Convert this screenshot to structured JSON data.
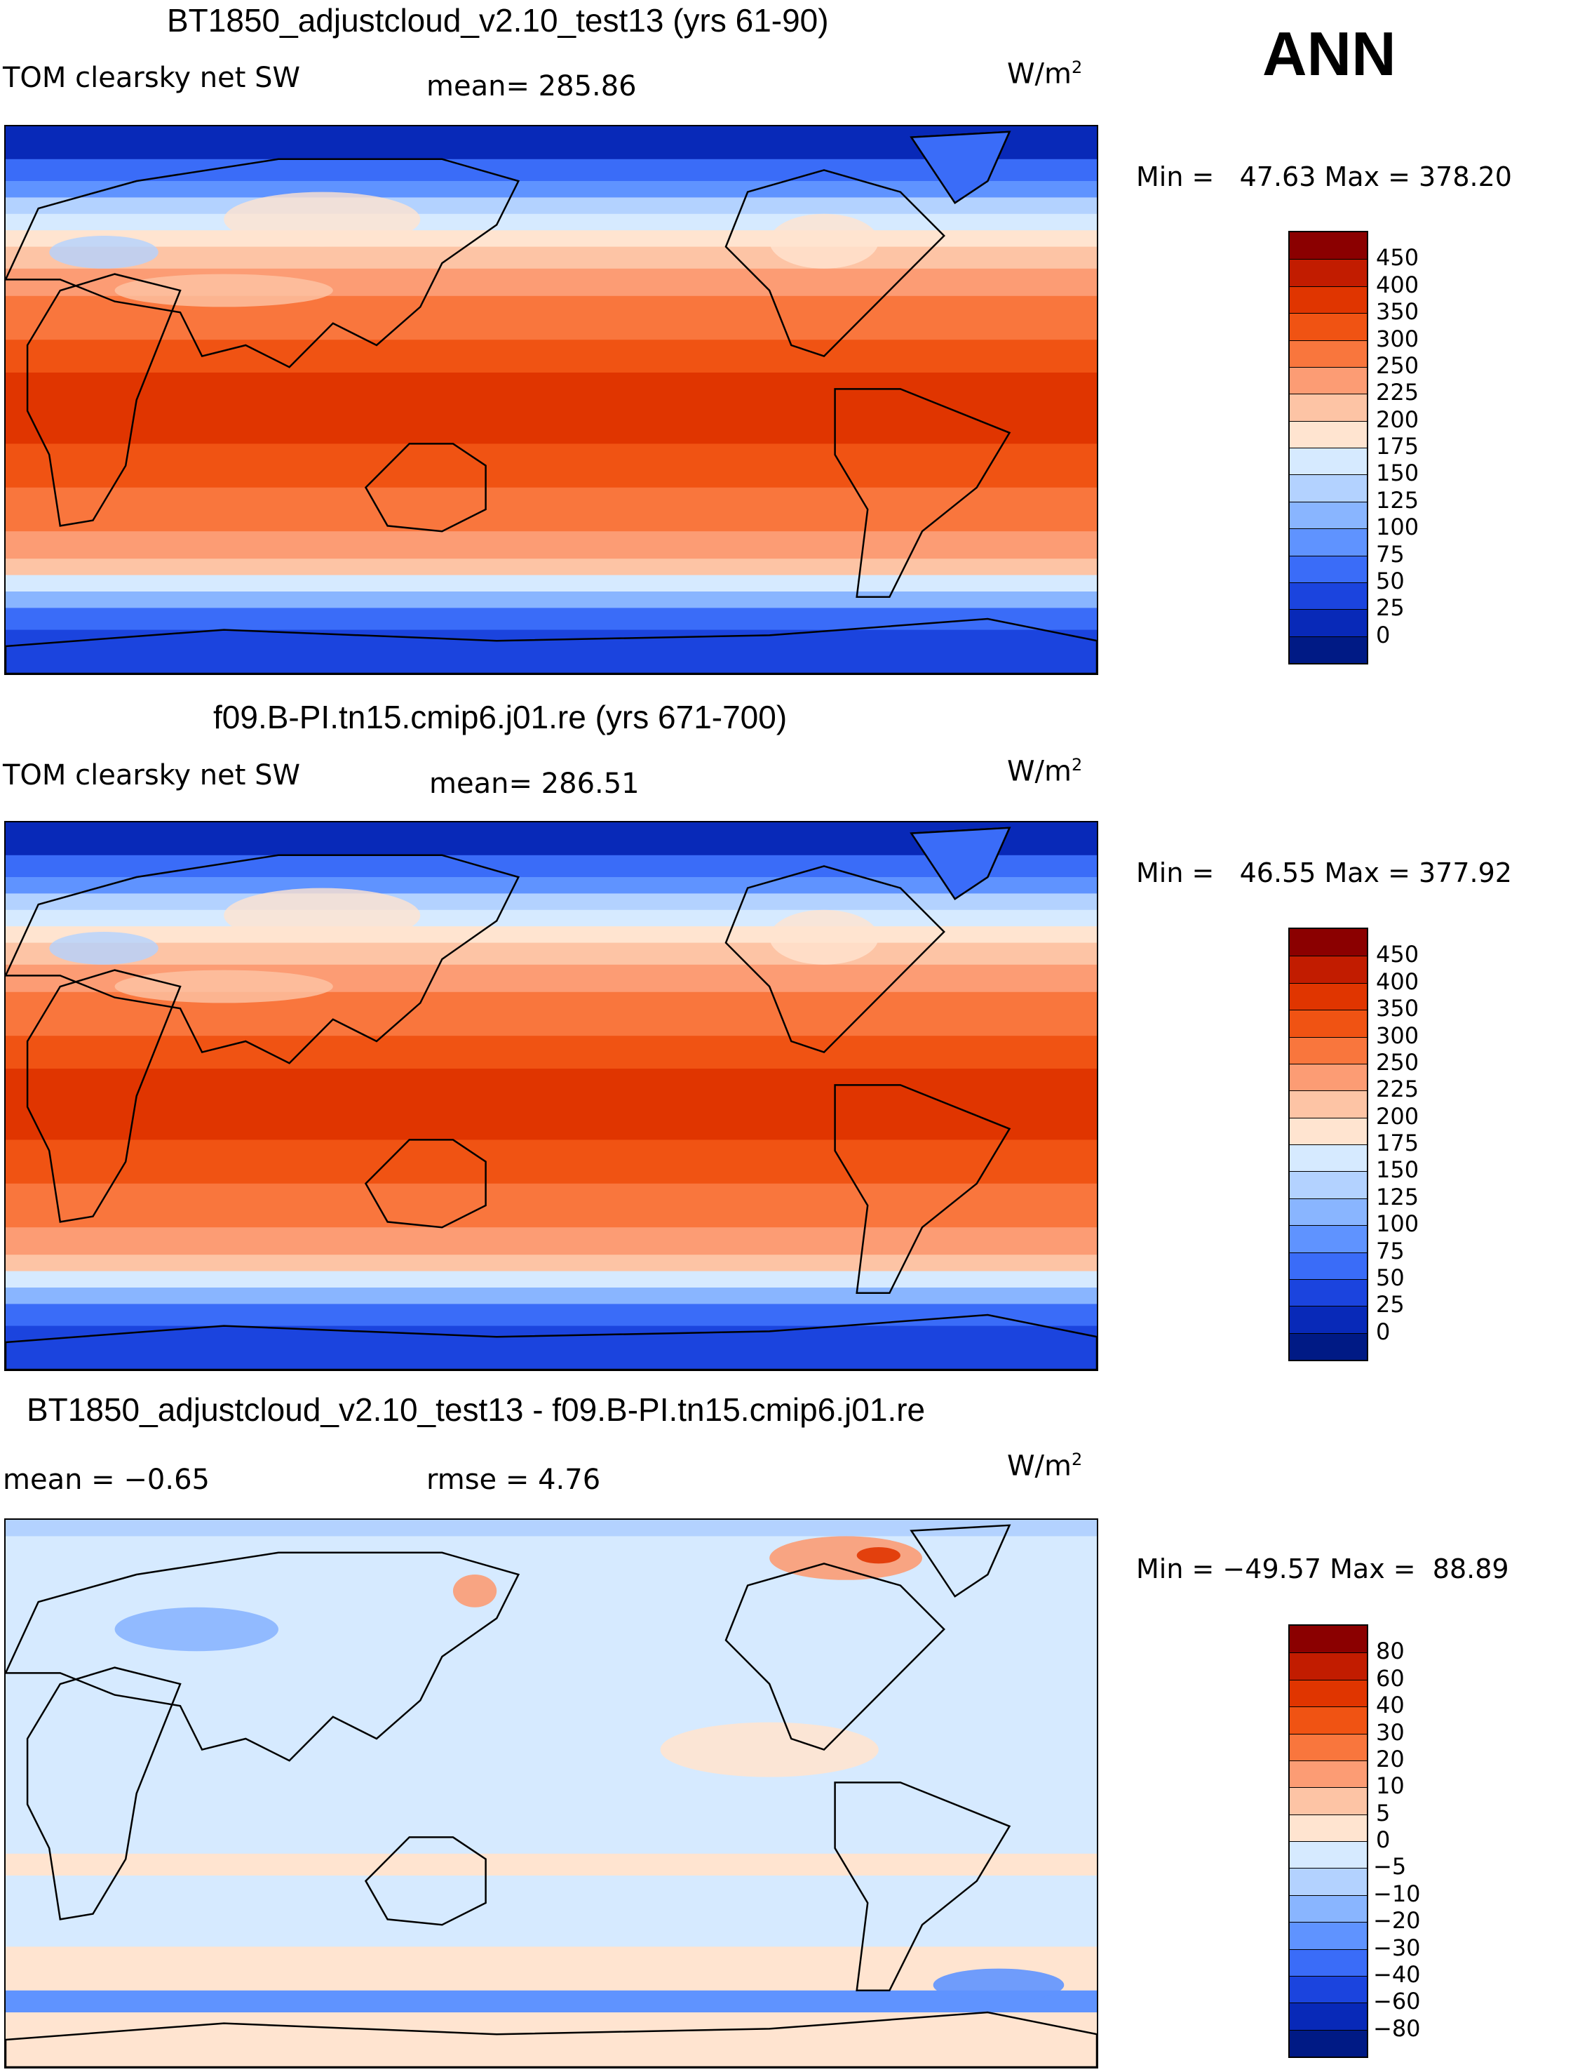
{
  "season": "ANN",
  "units_base": "W/m",
  "units_exp": "2",
  "panels": [
    {
      "title": "BT1850_adjustcloud_v2.10_test13 (yrs 61-90)",
      "left_label": "TOM clearsky net SW",
      "center_label": "mean= 285.86",
      "minmax": "Min =   47.63 Max = 378.20",
      "map_type": "absolute"
    },
    {
      "title": "f09.B-PI.tn15.cmip6.j01.re (yrs 671-700)",
      "left_label": "TOM clearsky net SW",
      "center_label": "mean= 286.51",
      "minmax": "Min =   46.55 Max = 377.92",
      "map_type": "absolute"
    },
    {
      "title": "BT1850_adjustcloud_v2.10_test13 - f09.B-PI.tn15.cmip6.j01.re",
      "left_label": "mean =   −0.65",
      "center_label": "rmse =    4.76",
      "minmax": "Min = −49.57 Max =  88.89",
      "map_type": "difference"
    }
  ],
  "colorbar_abs": {
    "labels": [
      "450",
      "400",
      "350",
      "300",
      "250",
      "225",
      "200",
      "175",
      "150",
      "125",
      "100",
      "75",
      "50",
      "25",
      "0"
    ],
    "colors": [
      "#8b0000",
      "#c21c00",
      "#e03500",
      "#f05313",
      "#f9763d",
      "#fc9c74",
      "#fdc4a5",
      "#ffe4d0",
      "#d6eaff",
      "#b3d2ff",
      "#89b5ff",
      "#5f93ff",
      "#3a6cf8",
      "#1b44de",
      "#0829b8",
      "#001a85"
    ]
  },
  "colorbar_diff": {
    "labels": [
      "80",
      "60",
      "40",
      "30",
      "20",
      "10",
      "5",
      "0",
      "−5",
      "−10",
      "−20",
      "−30",
      "−40",
      "−60",
      "−80"
    ],
    "colors": [
      "#8b0000",
      "#c21c00",
      "#e03500",
      "#f05313",
      "#f9763d",
      "#fc9c74",
      "#fdc4a5",
      "#ffe4d0",
      "#d6eaff",
      "#b3d2ff",
      "#89b5ff",
      "#5f93ff",
      "#3a6cf8",
      "#1b44de",
      "#0829b8",
      "#001a85"
    ]
  },
  "map_data": {
    "projection": "cylindrical equidistant, centered on Pacific",
    "field": "TOM clearsky net SW",
    "units": "W/m2"
  }
}
